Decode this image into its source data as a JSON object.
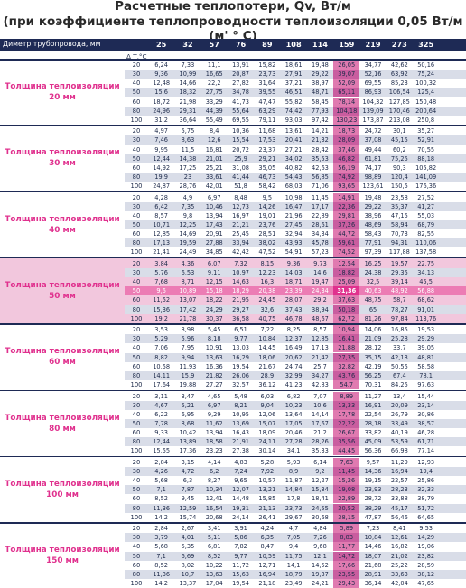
{
  "title_line1": "Расчетные теплопотери, Qv, Вт/м",
  "title_line2": "(при коэффициенте теплопроводности теплоизоляции 0,05 Вт/м (м' ° C)",
  "header_label": "Диметр трубопровода, мм",
  "diameters": [
    "25",
    "32",
    "57",
    "76",
    "89",
    "108",
    "114",
    "159",
    "219",
    "273",
    "325"
  ],
  "delta_t_label": "Δ T,°C",
  "temps": [
    "20",
    "30",
    "40",
    "50",
    "60",
    "80",
    "100"
  ],
  "groups": [
    {
      "label": "Толщина теплоизоляции",
      "sub": "20 мм",
      "rows": [
        [
          "6,24",
          "7,33",
          "11,1",
          "13,91",
          "15,82",
          "18,61",
          "19,48",
          "26,05",
          "34,77",
          "42,62",
          "50,16"
        ],
        [
          "9,36",
          "10,99",
          "16,65",
          "20,87",
          "23,73",
          "27,91",
          "29,22",
          "39,07",
          "52,16",
          "63,92",
          "75,24"
        ],
        [
          "12,48",
          "14,66",
          "22,2",
          "27,82",
          "31,64",
          "37,21",
          "38,97",
          "52,09",
          "69,55",
          "85,23",
          "100,32"
        ],
        [
          "15,6",
          "18,32",
          "27,75",
          "34,78",
          "39,55",
          "46,51",
          "48,71",
          "65,11",
          "86,93",
          "106,54",
          "125,4"
        ],
        [
          "18,72",
          "21,98",
          "33,29",
          "41,73",
          "47,47",
          "55,82",
          "58,45",
          "78,14",
          "104,32",
          "127,85",
          "150,48"
        ],
        [
          "24,96",
          "29,31",
          "44,39",
          "55,64",
          "63,29",
          "74,42",
          "77,93",
          "104,18",
          "139,09",
          "170,46",
          "200,64"
        ],
        [
          "31,2",
          "36,64",
          "55,49",
          "69,55",
          "79,11",
          "93,03",
          "97,42",
          "130,23",
          "173,87",
          "213,08",
          "250,8"
        ]
      ]
    },
    {
      "label": "Толщина теплоизоляции",
      "sub": "30 мм",
      "rows": [
        [
          "4,97",
          "5,75",
          "8,4",
          "10,36",
          "11,68",
          "13,61",
          "14,21",
          "18,73",
          "24,72",
          "30,1",
          "35,27"
        ],
        [
          "7,46",
          "8,63",
          "12,6",
          "15,54",
          "17,53",
          "20,41",
          "21,32",
          "28,09",
          "37,08",
          "45,15",
          "52,91"
        ],
        [
          "9,95",
          "11,5",
          "16,81",
          "20,72",
          "23,37",
          "27,21",
          "28,42",
          "37,46",
          "49,44",
          "60,2",
          "70,55"
        ],
        [
          "12,44",
          "14,38",
          "21,01",
          "25,9",
          "29,21",
          "34,02",
          "35,53",
          "46,82",
          "61,81",
          "75,25",
          "88,18"
        ],
        [
          "14,92",
          "17,25",
          "25,21",
          "31,08",
          "35,05",
          "40,82",
          "42,63",
          "56,19",
          "74,17",
          "90,3",
          "105,82"
        ],
        [
          "19,9",
          "23",
          "33,61",
          "41,44",
          "46,73",
          "54,43",
          "56,85",
          "74,92",
          "98,89",
          "120,4",
          "141,09"
        ],
        [
          "24,87",
          "28,76",
          "42,01",
          "51,8",
          "58,42",
          "68,03",
          "71,06",
          "93,65",
          "123,61",
          "150,5",
          "176,36"
        ]
      ]
    },
    {
      "label": "Толщина теплоизоляции",
      "sub": "40 мм",
      "rows": [
        [
          "4,28",
          "4,9",
          "6,97",
          "8,48",
          "9,5",
          "10,98",
          "11,45",
          "14,91",
          "19,48",
          "23,58",
          "27,52"
        ],
        [
          "6,42",
          "7,35",
          "10,46",
          "12,73",
          "14,26",
          "16,47",
          "17,17",
          "22,36",
          "29,22",
          "35,37",
          "41,27"
        ],
        [
          "8,57",
          "9,8",
          "13,94",
          "16,97",
          "19,01",
          "21,96",
          "22,89",
          "29,81",
          "38,96",
          "47,15",
          "55,03"
        ],
        [
          "10,71",
          "12,25",
          "17,43",
          "21,21",
          "23,76",
          "27,45",
          "28,61",
          "37,26",
          "48,69",
          "58,94",
          "68,79"
        ],
        [
          "12,85",
          "14,69",
          "20,91",
          "25,45",
          "28,51",
          "32,94",
          "34,34",
          "44,72",
          "58,43",
          "70,73",
          "82,55"
        ],
        [
          "17,13",
          "19,59",
          "27,88",
          "33,94",
          "38,02",
          "43,93",
          "45,78",
          "59,61",
          "77,91",
          "94,31",
          "110,06"
        ],
        [
          "21,41",
          "24,49",
          "34,85",
          "42,42",
          "47,52",
          "54,91",
          "57,23",
          "74,52",
          "97,39",
          "117,88",
          "137,58"
        ]
      ]
    },
    {
      "label": "Толщина теплоизоляции",
      "sub": "50 мм",
      "rows": [
        [
          "3,84",
          "4,36",
          "6,07",
          "7,32",
          "8,15",
          "9,36",
          "9,73",
          "12,54",
          "16,25",
          "19,57",
          "22,75"
        ],
        [
          "5,76",
          "6,53",
          "9,11",
          "10,97",
          "12,23",
          "14,03",
          "14,6",
          "18,82",
          "24,38",
          "29,35",
          "34,13"
        ],
        [
          "7,68",
          "8,71",
          "12,15",
          "14,63",
          "16,3",
          "18,71",
          "19,47",
          "25,09",
          "32,5",
          "39,14",
          "45,5"
        ],
        [
          "9,6",
          "10,89",
          "15,18",
          "18,29",
          "20,38",
          "23,39",
          "24,34",
          "31,36",
          "40,63",
          "48,92",
          "56,88"
        ],
        [
          "11,52",
          "13,07",
          "18,22",
          "21,95",
          "24,45",
          "28,07",
          "29,2",
          "37,63",
          "48,75",
          "58,7",
          "68,62"
        ],
        [
          "15,36",
          "17,42",
          "24,29",
          "29,27",
          "32,6",
          "37,43",
          "38,94",
          "50,18",
          "65",
          "78,27",
          "91,01"
        ],
        [
          "19,2",
          "21,78",
          "30,37",
          "36,58",
          "40,75",
          "46,78",
          "48,67",
          "62,72",
          "81,26",
          "97,84",
          "113,76"
        ]
      ]
    },
    {
      "label": "Толщина теплоизоляции",
      "sub": "60 мм",
      "rows": [
        [
          "3,53",
          "3,98",
          "5,45",
          "6,51",
          "7,22",
          "8,25",
          "8,57",
          "10,94",
          "14,06",
          "16,85",
          "19,53"
        ],
        [
          "5,29",
          "5,96",
          "8,18",
          "9,77",
          "10,84",
          "12,37",
          "12,85",
          "16,41",
          "21,09",
          "25,28",
          "29,29"
        ],
        [
          "7,06",
          "7,95",
          "10,91",
          "13,03",
          "14,45",
          "16,49",
          "17,13",
          "21,88",
          "28,12",
          "33,7",
          "39,05"
        ],
        [
          "8,82",
          "9,94",
          "13,63",
          "16,29",
          "18,06",
          "20,62",
          "21,42",
          "27,35",
          "35,15",
          "42,13",
          "48,81"
        ],
        [
          "10,58",
          "11,93",
          "16,36",
          "19,54",
          "21,67",
          "24,74",
          "25,7",
          "32,82",
          "42,19",
          "50,55",
          "58,58"
        ],
        [
          "14,11",
          "15,9",
          "21,82",
          "26,06",
          "28,9",
          "32,99",
          "34,27",
          "43,76",
          "56,25",
          "67,4",
          "78,1"
        ],
        [
          "17,64",
          "19,88",
          "27,27",
          "32,57",
          "36,12",
          "41,23",
          "42,83",
          "54,7",
          "70,31",
          "84,25",
          "97,63"
        ]
      ]
    },
    {
      "label": "Толщина теплоизоляции",
      "sub": "80 мм",
      "rows": [
        [
          "3,11",
          "3,47",
          "4,65",
          "5,48",
          "6,03",
          "6,82",
          "7,07",
          "8,89",
          "11,27",
          "13,4",
          "15,44"
        ],
        [
          "4,67",
          "5,21",
          "6,97",
          "8,21",
          "9,04",
          "10,23",
          "10,6",
          "13,33",
          "16,91",
          "20,09",
          "23,14"
        ],
        [
          "6,22",
          "6,95",
          "9,29",
          "10,95",
          "12,06",
          "13,64",
          "14,14",
          "17,78",
          "22,54",
          "26,79",
          "30,86"
        ],
        [
          "7,78",
          "8,68",
          "11,62",
          "13,69",
          "15,07",
          "17,05",
          "17,67",
          "22,22",
          "28,18",
          "33,49",
          "38,57"
        ],
        [
          "9,33",
          "10,42",
          "13,94",
          "16,43",
          "18,09",
          "20,46",
          "21,2",
          "26,67",
          "33,82",
          "40,19",
          "46,28"
        ],
        [
          "12,44",
          "13,89",
          "18,58",
          "21,91",
          "24,11",
          "27,28",
          "28,26",
          "35,56",
          "45,09",
          "53,59",
          "61,71"
        ],
        [
          "15,55",
          "17,36",
          "23,23",
          "27,38",
          "30,14",
          "34,1",
          "35,33",
          "44,45",
          "56,36",
          "66,98",
          "77,14"
        ]
      ]
    },
    {
      "label": "Толщина теплоизоляции",
      "sub": "100 мм",
      "rows": [
        [
          "2,84",
          "3,15",
          "4,14",
          "4,83",
          "5,28",
          "5,93",
          "6,14",
          "7,63",
          "9,57",
          "11,29",
          "12,93"
        ],
        [
          "4,26",
          "4,72",
          "6,2",
          "7,24",
          "7,92",
          "8,9",
          "9,2",
          "11,45",
          "14,36",
          "16,94",
          "19,4"
        ],
        [
          "5,68",
          "6,3",
          "8,27",
          "9,65",
          "10,57",
          "11,87",
          "12,27",
          "15,26",
          "19,15",
          "22,57",
          "25,86"
        ],
        [
          "7,1",
          "7,87",
          "10,34",
          "12,07",
          "13,21",
          "14,84",
          "15,34",
          "19,08",
          "23,93",
          "28,23",
          "32,33"
        ],
        [
          "8,52",
          "9,45",
          "12,41",
          "14,48",
          "15,85",
          "17,8",
          "18,41",
          "22,89",
          "28,72",
          "33,88",
          "38,79"
        ],
        [
          "11,36",
          "12,59",
          "16,54",
          "19,31",
          "21,13",
          "23,73",
          "24,55",
          "30,52",
          "38,29",
          "45,17",
          "51,72"
        ],
        [
          "14,2",
          "15,74",
          "20,68",
          "24,14",
          "26,41",
          "29,67",
          "30,68",
          "38,15",
          "47,87",
          "56,46",
          "64,65"
        ]
      ]
    },
    {
      "label": "Толщина теплоизоляции",
      "sub": "150 мм",
      "rows": [
        [
          "2,84",
          "2,67",
          "3,41",
          "3,91",
          "4,24",
          "4,7",
          "4,84",
          "5,89",
          "7,23",
          "8,41",
          "9,53"
        ],
        [
          "3,79",
          "4,01",
          "5,11",
          "5,86",
          "6,35",
          "7,05",
          "7,26",
          "8,83",
          "10,84",
          "12,61",
          "14,29"
        ],
        [
          "5,68",
          "5,35",
          "6,81",
          "7,82",
          "8,47",
          "9,4",
          "9,68",
          "11,77",
          "14,46",
          "16,82",
          "19,06"
        ],
        [
          "7,1",
          "6,69",
          "8,52",
          "9,77",
          "10,59",
          "11,75",
          "12,1",
          "14,72",
          "18,07",
          "21,02",
          "23,82"
        ],
        [
          "8,52",
          "8,02",
          "10,22",
          "11,72",
          "12,71",
          "14,1",
          "14,52",
          "17,66",
          "21,68",
          "25,22",
          "28,59"
        ],
        [
          "11,36",
          "10,7",
          "13,63",
          "15,63",
          "16,94",
          "18,79",
          "19,37",
          "23,55",
          "28,91",
          "33,63",
          "38,12"
        ],
        [
          "14,2",
          "13,37",
          "17,04",
          "19,54",
          "21,18",
          "23,49",
          "24,21",
          "29,43",
          "36,14",
          "42,04",
          "47,65"
        ]
      ]
    }
  ],
  "highlight": {
    "group": 3,
    "row": 3,
    "col": 7
  },
  "colors": {
    "header_bg": "#1e2a55",
    "accent": "#e0318e",
    "stripe": "#d9dde8",
    "col159": "#e07ab0"
  }
}
